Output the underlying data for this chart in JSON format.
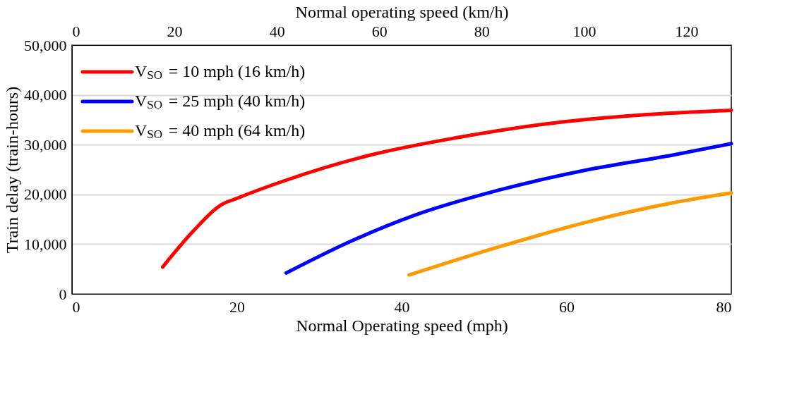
{
  "chart_data": {
    "type": "line",
    "xlabel": "Normal Operating speed (mph)",
    "ylabel": "Train delay (train-hours)",
    "x2label": "Normal operating speed (km/h)",
    "xlim": [
      0,
      80
    ],
    "xticks": [
      0,
      20,
      40,
      60,
      80
    ],
    "x2lim": [
      0,
      128.75
    ],
    "x2ticks": [
      0,
      20,
      40,
      60,
      80,
      100,
      120
    ],
    "ylim": [
      0,
      50000
    ],
    "yticks": [
      {
        "value": 0,
        "label": "0"
      },
      {
        "value": 10000,
        "label": "10,000"
      },
      {
        "value": 20000,
        "label": "20,000"
      },
      {
        "value": 30000,
        "label": "30,000"
      },
      {
        "value": 40000,
        "label": "40,000"
      },
      {
        "value": 50000,
        "label": "50,000"
      }
    ],
    "grid": "y",
    "legend": "top left",
    "marker": "none",
    "line_style": "solid",
    "series": [
      {
        "name": "V$_{SO}$ = 10 mph (16 km/h)",
        "color": "#ff0000",
        "x": [
          11.0,
          14.7,
          18.1,
          20.0,
          25.7,
          36.2,
          46.7,
          57.2,
          67.7,
          80
        ],
        "values": [
          5400,
          12600,
          17900,
          19200,
          22700,
          27900,
          31400,
          34100,
          35800,
          36900
        ]
      },
      {
        "name": "V$_{SO}$ = 25 mph (40 km/h)",
        "color": "#0000ff",
        "x": [
          26.0,
          33.6,
          41.4,
          51.9,
          62.4,
          72.9,
          80
        ],
        "values": [
          4200,
          10400,
          15700,
          20900,
          24900,
          27900,
          30200
        ]
      },
      {
        "name": "V$_{SO}$ = 40 mph (64 km/h)",
        "color": "#ff9900",
        "x": [
          40.9,
          51.9,
          62.4,
          72.9,
          80
        ],
        "values": [
          3800,
          9500,
          14400,
          18300,
          20300
        ]
      }
    ]
  }
}
